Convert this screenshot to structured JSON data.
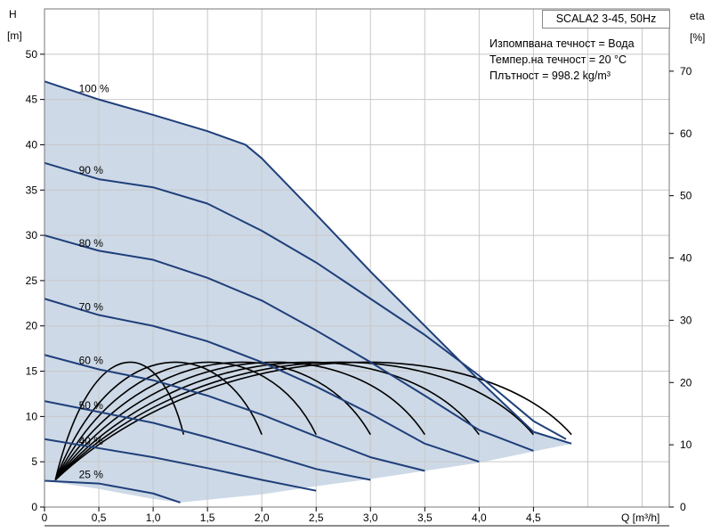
{
  "chart_data": {
    "type": "line",
    "title": "SCALA2 3-45, 50Hz",
    "info_lines": [
      "Изпомпвана течност = Вода",
      "Темпер.на течност = 20 °C",
      "Плътност = 998.2 kg/m³"
    ],
    "xlabel": "Q [m³/h]",
    "ylabel_left_top": "H",
    "ylabel_left_bottom": "[m]",
    "ylabel_right_top": "eta",
    "ylabel_right_bottom": "[%]",
    "xlim": [
      0,
      5.75
    ],
    "ylim_left": [
      0,
      55
    ],
    "ylim_right": [
      0,
      80
    ],
    "x_ticks": [
      0,
      0.5,
      1.0,
      1.5,
      2.0,
      2.5,
      3.0,
      3.5,
      4.0,
      4.5
    ],
    "x_tick_labels": [
      "0",
      "0,5",
      "1,0",
      "1,5",
      "2,0",
      "2,5",
      "3,0",
      "3,5",
      "4,0",
      "4,5"
    ],
    "y_ticks_left": [
      0,
      5,
      10,
      15,
      20,
      25,
      30,
      35,
      40,
      45,
      50
    ],
    "y_tick_labels_left": [
      "0",
      "5",
      "10",
      "15",
      "20",
      "25",
      "30",
      "35",
      "40",
      "45",
      "50"
    ],
    "y_ticks_right": [
      0,
      10,
      20,
      30,
      40,
      50,
      60,
      70
    ],
    "y_tick_labels_right": [
      "0",
      "10",
      "20",
      "30",
      "40",
      "50",
      "60",
      "70"
    ],
    "grid": true,
    "colors": {
      "area_fill": "#cdd9e7",
      "head_curve": "#1f3f7a",
      "eta_curve": "#000000",
      "grid": "#c8c8c8"
    },
    "operating_area": [
      [
        0,
        47
      ],
      [
        0.5,
        45
      ],
      [
        1.0,
        43.3
      ],
      [
        1.5,
        41.5
      ],
      [
        1.85,
        40
      ],
      [
        2.0,
        38.5
      ],
      [
        2.5,
        32.3
      ],
      [
        3.0,
        26
      ],
      [
        3.5,
        20
      ],
      [
        4.0,
        14
      ],
      [
        4.5,
        8.3
      ],
      [
        4.85,
        7
      ],
      [
        4.0,
        4.9
      ],
      [
        3.5,
        4
      ],
      [
        3.0,
        3.1
      ],
      [
        2.5,
        2.3
      ],
      [
        2.0,
        1.4
      ],
      [
        1.25,
        0.5
      ],
      [
        1.0,
        0.9
      ],
      [
        0.5,
        2
      ],
      [
        0,
        2.9
      ]
    ],
    "series": [
      {
        "name": "100 %",
        "points": [
          [
            0,
            47
          ],
          [
            0.5,
            45
          ],
          [
            1.0,
            43.3
          ],
          [
            1.5,
            41.5
          ],
          [
            1.85,
            40
          ],
          [
            2.0,
            38.5
          ],
          [
            2.5,
            32.3
          ],
          [
            3.0,
            26
          ],
          [
            3.5,
            20
          ],
          [
            4.0,
            14
          ],
          [
            4.5,
            8.3
          ],
          [
            4.85,
            7
          ]
        ],
        "label_at": [
          0.3,
          46.2
        ]
      },
      {
        "name": "90 %",
        "points": [
          [
            0,
            38
          ],
          [
            0.5,
            36.2
          ],
          [
            1.0,
            35.3
          ],
          [
            1.5,
            33.5
          ],
          [
            2.0,
            30.5
          ],
          [
            2.5,
            27
          ],
          [
            3.0,
            23
          ],
          [
            3.5,
            19
          ],
          [
            4.0,
            14.5
          ],
          [
            4.5,
            9.5
          ],
          [
            4.8,
            7.5
          ]
        ],
        "label_at": [
          0.3,
          37.2
        ]
      },
      {
        "name": "80 %",
        "points": [
          [
            0,
            30
          ],
          [
            0.5,
            28.3
          ],
          [
            1.0,
            27.3
          ],
          [
            1.5,
            25.3
          ],
          [
            2.0,
            22.8
          ],
          [
            2.5,
            19.5
          ],
          [
            3.0,
            16
          ],
          [
            3.5,
            12.3
          ],
          [
            4.0,
            8.5
          ],
          [
            4.5,
            6.2
          ]
        ],
        "label_at": [
          0.3,
          29.1
        ]
      },
      {
        "name": "70 %",
        "points": [
          [
            0,
            23
          ],
          [
            0.5,
            21.2
          ],
          [
            1.0,
            20
          ],
          [
            1.5,
            18.3
          ],
          [
            2.0,
            16
          ],
          [
            2.5,
            13.3
          ],
          [
            3.0,
            10.3
          ],
          [
            3.5,
            7
          ],
          [
            4.0,
            5
          ]
        ],
        "label_at": [
          0.3,
          22.1
        ]
      },
      {
        "name": "60 %",
        "points": [
          [
            0,
            16.8
          ],
          [
            0.5,
            15.2
          ],
          [
            1.0,
            14
          ],
          [
            1.5,
            12.3
          ],
          [
            2.0,
            10.2
          ],
          [
            2.5,
            7.8
          ],
          [
            3.0,
            5.5
          ],
          [
            3.5,
            4
          ]
        ],
        "label_at": [
          0.3,
          16.2
        ]
      },
      {
        "name": "50 %",
        "points": [
          [
            0,
            11.7
          ],
          [
            0.5,
            10.5
          ],
          [
            1.0,
            9.3
          ],
          [
            1.5,
            7.7
          ],
          [
            2.0,
            6
          ],
          [
            2.5,
            4.2
          ],
          [
            3.0,
            3
          ]
        ],
        "label_at": [
          0.3,
          11.2
        ]
      },
      {
        "name": "40 %",
        "points": [
          [
            0,
            7.5
          ],
          [
            0.5,
            6.5
          ],
          [
            1.0,
            5.5
          ],
          [
            1.5,
            4.3
          ],
          [
            2.0,
            3
          ],
          [
            2.5,
            1.8
          ]
        ],
        "label_at": [
          0.3,
          7.3
        ]
      },
      {
        "name": "25 %",
        "points": [
          [
            0,
            2.9
          ],
          [
            0.5,
            2.6
          ],
          [
            1.0,
            1.5
          ],
          [
            1.25,
            0.5
          ]
        ],
        "label_at": [
          0.3,
          3.6
        ]
      }
    ],
    "efficiency_curves": [
      {
        "peak_x": 0.7,
        "end_x": 1.28,
        "end_y": 8
      },
      {
        "peak_x": 1.05,
        "end_x": 2.0,
        "end_y": 8
      },
      {
        "peak_x": 1.35,
        "end_x": 2.5,
        "end_y": 8
      },
      {
        "peak_x": 1.65,
        "end_x": 3.0,
        "end_y": 8
      },
      {
        "peak_x": 1.95,
        "end_x": 3.5,
        "end_y": 8
      },
      {
        "peak_x": 2.25,
        "end_x": 4.0,
        "end_y": 8
      },
      {
        "peak_x": 2.5,
        "end_x": 4.5,
        "end_y": 8
      },
      {
        "peak_x": 2.75,
        "end_x": 4.85,
        "end_y": 8
      }
    ],
    "efficiency_peak_head": 19,
    "efficiency_start": [
      0.1,
      3
    ]
  }
}
